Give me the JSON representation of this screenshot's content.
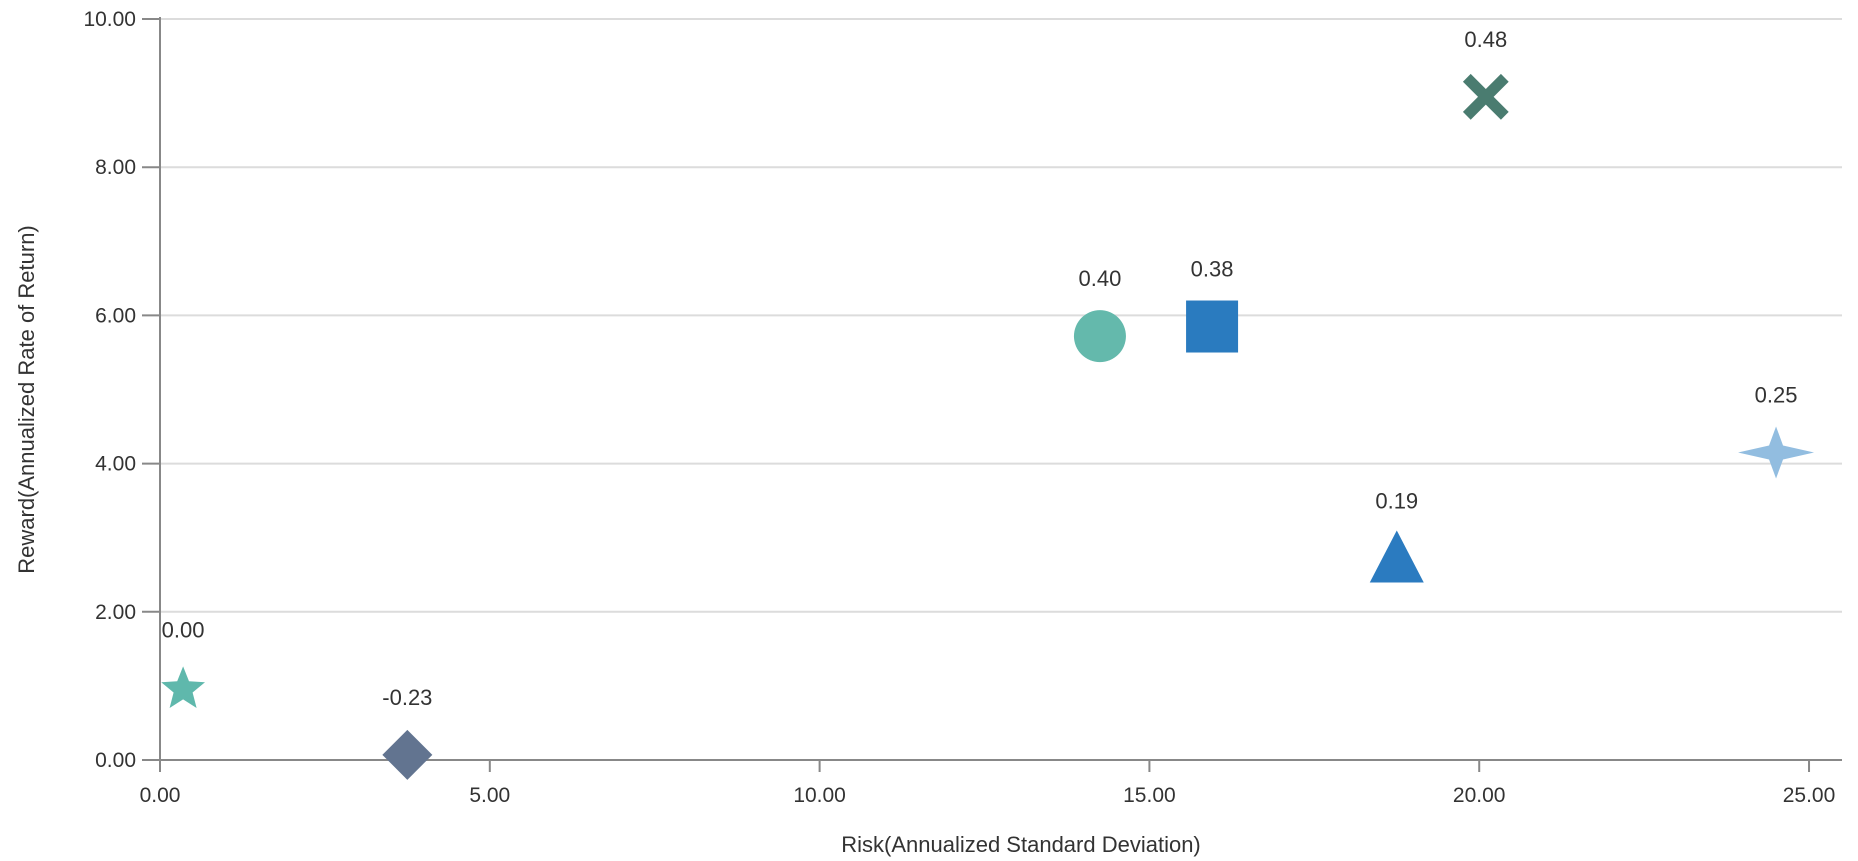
{
  "chart_data": {
    "type": "scatter",
    "xlabel": "Risk(Annualized Standard Deviation)",
    "ylabel": "Reward(Annualized Rate of Return)",
    "xlim": [
      0,
      25.5
    ],
    "ylim": [
      0,
      10
    ],
    "xticks": [
      0,
      5,
      10,
      15,
      20,
      25
    ],
    "yticks": [
      0,
      2,
      4,
      6,
      8,
      10
    ],
    "tick_format_decimals": 2,
    "grid": "horizontal",
    "legend": "none",
    "points": [
      {
        "x": 0.35,
        "y": 0.98,
        "label": "0.00",
        "marker": "star",
        "color": "#5fb8ac"
      },
      {
        "x": 3.75,
        "y": 0.07,
        "label": "-0.23",
        "marker": "diamond",
        "color": "#627490"
      },
      {
        "x": 14.25,
        "y": 5.72,
        "label": "0.40",
        "marker": "circle",
        "color": "#64b9ac"
      },
      {
        "x": 15.95,
        "y": 5.85,
        "label": "0.38",
        "marker": "square",
        "color": "#2a7bbf"
      },
      {
        "x": 18.75,
        "y": 2.72,
        "label": "0.19",
        "marker": "triangle",
        "color": "#2b7bc0"
      },
      {
        "x": 20.1,
        "y": 8.95,
        "label": "0.48",
        "marker": "cross",
        "color": "#4a7c70"
      },
      {
        "x": 24.5,
        "y": 4.15,
        "label": "0.25",
        "marker": "four-point-star",
        "color": "#92bde0"
      }
    ]
  }
}
